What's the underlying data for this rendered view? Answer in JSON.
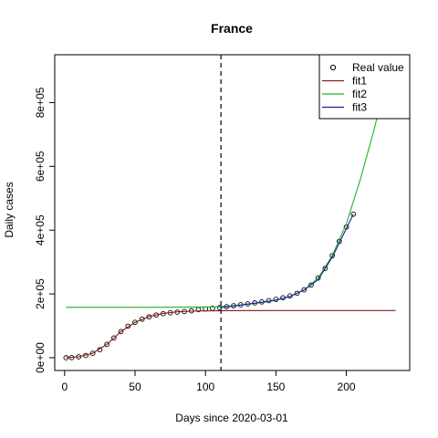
{
  "chart_data": {
    "type": "line",
    "title": "France",
    "xlabel": "Days since 2020-03-01",
    "ylabel": "Daily cases",
    "xlim": [
      -7,
      245
    ],
    "ylim": [
      -40000,
      950000
    ],
    "x_ticks": [
      0,
      50,
      100,
      150,
      200
    ],
    "y_ticks": [
      0,
      200000,
      400000,
      600000,
      800000
    ],
    "x_tick_labels": [
      "0",
      "50",
      "100",
      "150",
      "200"
    ],
    "y_tick_labels": [
      "0e+00",
      "2e+05",
      "4e+05",
      "6e+05",
      "8e+05"
    ],
    "grid": false,
    "legend_position": "top-right",
    "vline": {
      "x": 111,
      "style": "dashed",
      "color": "#000000"
    },
    "legend": [
      {
        "label": "Real value",
        "kind": "point",
        "color": "#000000"
      },
      {
        "label": "fit1",
        "kind": "line",
        "color": "#8b1a1a"
      },
      {
        "label": "fit2",
        "kind": "line",
        "color": "#22b222"
      },
      {
        "label": "fit3",
        "kind": "line",
        "color": "#1a1aa6"
      }
    ],
    "series": [
      {
        "name": "Real value",
        "kind": "points",
        "color": "#000000",
        "points": [
          [
            1,
            0
          ],
          [
            5,
            500
          ],
          [
            10,
            3000
          ],
          [
            15,
            7000
          ],
          [
            20,
            14000
          ],
          [
            25,
            25000
          ],
          [
            30,
            42000
          ],
          [
            35,
            62000
          ],
          [
            40,
            82000
          ],
          [
            45,
            99000
          ],
          [
            50,
            111000
          ],
          [
            55,
            121000
          ],
          [
            60,
            128000
          ],
          [
            65,
            134000
          ],
          [
            70,
            138000
          ],
          [
            75,
            141000
          ],
          [
            80,
            143000
          ],
          [
            85,
            145000
          ],
          [
            90,
            147000
          ],
          [
            95,
            151000
          ],
          [
            100,
            153000
          ],
          [
            105,
            155000
          ],
          [
            110,
            157000
          ],
          [
            115,
            160000
          ],
          [
            120,
            163000
          ],
          [
            125,
            166000
          ],
          [
            130,
            169000
          ],
          [
            135,
            172000
          ],
          [
            140,
            175000
          ],
          [
            145,
            179000
          ],
          [
            150,
            183000
          ],
          [
            155,
            188000
          ],
          [
            160,
            194000
          ],
          [
            165,
            202000
          ],
          [
            170,
            213000
          ],
          [
            175,
            228000
          ],
          [
            180,
            250000
          ],
          [
            185,
            280000
          ],
          [
            190,
            320000
          ],
          [
            195,
            365000
          ],
          [
            200,
            410000
          ],
          [
            205,
            450000
          ]
        ]
      },
      {
        "name": "fit1",
        "kind": "line",
        "color": "#8b1a1a",
        "points": [
          [
            1,
            0
          ],
          [
            10,
            3000
          ],
          [
            20,
            14000
          ],
          [
            30,
            42000
          ],
          [
            40,
            82000
          ],
          [
            50,
            111000
          ],
          [
            60,
            129000
          ],
          [
            70,
            139000
          ],
          [
            80,
            144000
          ],
          [
            90,
            146000
          ],
          [
            100,
            147000
          ],
          [
            120,
            147500
          ],
          [
            150,
            147800
          ],
          [
            200,
            148000
          ],
          [
            235,
            148000
          ]
        ]
      },
      {
        "name": "fit2",
        "kind": "line",
        "color": "#22b222",
        "points": [
          [
            1,
            158000
          ],
          [
            50,
            158000
          ],
          [
            100,
            159000
          ],
          [
            110,
            160000
          ],
          [
            120,
            163000
          ],
          [
            130,
            168000
          ],
          [
            140,
            173000
          ],
          [
            150,
            180000
          ],
          [
            160,
            192000
          ],
          [
            170,
            213000
          ],
          [
            180,
            250000
          ],
          [
            190,
            320000
          ],
          [
            200,
            420000
          ],
          [
            210,
            560000
          ],
          [
            220,
            720000
          ],
          [
            226,
            830000
          ]
        ]
      },
      {
        "name": "fit3",
        "kind": "line",
        "color": "#1a1aa6",
        "points": [
          [
            110,
            157000
          ],
          [
            120,
            162000
          ],
          [
            130,
            168000
          ],
          [
            140,
            174000
          ],
          [
            150,
            181000
          ],
          [
            160,
            192000
          ],
          [
            170,
            212000
          ],
          [
            180,
            245000
          ],
          [
            190,
            315000
          ],
          [
            200,
            405000
          ],
          [
            205,
            450000
          ]
        ]
      }
    ]
  }
}
